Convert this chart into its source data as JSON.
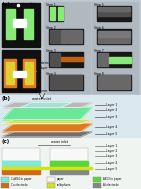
{
  "fig_width": 1.41,
  "fig_height": 1.89,
  "dpi": 100,
  "bg_color": "#e8e8e8",
  "panel_a": {
    "label": "(a)",
    "bg": "#c0c8d0",
    "left_bg": "#101010",
    "green": "#88e878",
    "yellow": "#e0d030",
    "orange": "#e07828",
    "white": "#ffffff",
    "text_color": "#222222",
    "step_bg": "#b0b8c0",
    "step_dark": "#181818",
    "step_gray1": "#505050",
    "step_gray2": "#686868",
    "step_gray3": "#787878",
    "step_orange": "#c06010",
    "step_teal": "#208878",
    "step_green": "#60c840"
  },
  "panel_b": {
    "label": "(b)",
    "bg": "#dce8f0",
    "layer_labels": [
      "Layer 1",
      "Layer 2",
      "Layer 3",
      "Layer 4",
      "Layer 5"
    ],
    "green": "#68e898",
    "cyan": "#a0f0e0",
    "orange": "#e07820",
    "gray_dark": "#707070",
    "gray_light": "#b8b8b8",
    "yellow_green": "#d0e858",
    "water_inlet": "water inlet"
  },
  "panel_c": {
    "label": "(c)",
    "bg": "#f0f4f0",
    "layer_labels": [
      "Layer 1",
      "Layer 2",
      "Layer 3",
      "Layer 4",
      "Layer 5"
    ],
    "water_inlet": "water inlet",
    "cyan": "#80e8d8",
    "green": "#58d838",
    "yellow": "#d8e018",
    "orange": "#d06818",
    "gray": "#808888",
    "white": "#f8f8f8",
    "legend": {
      "CuSO4_color": "#80e8d8",
      "CuSO4_label": "CuSO4 in paper",
      "paper_color": "#f8f8f8",
      "paper_label": "paper",
      "AlCl3_color": "#58d838",
      "AlCl3_label": "AlCl3 in paper",
      "Cu_color": "#d06818",
      "Cu_label": "Cu electrode",
      "cellophane_color": "#d8e018",
      "cellophane_label": "cellophane",
      "Al_color": "#808888",
      "Al_label": "Al electrode"
    }
  }
}
